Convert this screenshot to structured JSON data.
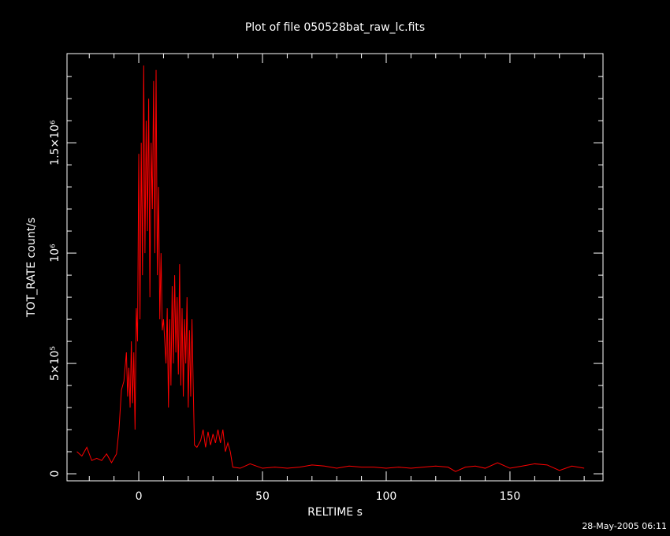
{
  "chart_data": {
    "type": "line",
    "title": "Plot of file 050528bat_raw_lc.fits",
    "x_label": "RELTIME  s",
    "y_label": "TOT_RATE  count/s",
    "timestamp": "28-May-2005 06:11",
    "color": "#ff0000",
    "xlim": [
      -29,
      187.6
    ],
    "ylim": [
      -32000,
      1904000
    ],
    "xticks": [
      0,
      50,
      100,
      150
    ],
    "yticks": [
      0,
      {
        "value": 500000,
        "label": "5×10⁵"
      },
      {
        "value": 1000000,
        "label": "10⁶"
      },
      {
        "value": 1500000,
        "label": "1.5×10⁶"
      }
    ],
    "xminorticks": [
      -20,
      -10,
      10,
      20,
      30,
      40,
      60,
      70,
      80,
      90,
      110,
      120,
      130,
      140,
      160,
      170,
      180
    ],
    "yminorticks": [
      100000,
      200000,
      300000,
      400000,
      600000,
      700000,
      800000,
      900000,
      1100000,
      1200000,
      1300000,
      1400000,
      1600000,
      1700000,
      1800000
    ],
    "x": [
      -25,
      -23,
      -21,
      -19,
      -17,
      -15,
      -13,
      -11,
      -9,
      -8,
      -7,
      -6,
      -5,
      -4.5,
      -4,
      -3.5,
      -3,
      -2.5,
      -2,
      -1.5,
      -1,
      -0.5,
      0,
      0.5,
      1,
      1.5,
      2,
      2.5,
      3,
      3.5,
      4,
      4.5,
      5,
      5.5,
      6,
      6.5,
      7,
      7.5,
      8,
      8.5,
      9,
      9.5,
      10,
      11,
      11.5,
      12,
      12.5,
      13,
      13.5,
      14,
      14.5,
      15,
      15.5,
      16,
      16.5,
      17,
      17.5,
      18,
      18.5,
      19,
      19.5,
      20,
      20.5,
      21,
      21.5,
      22,
      22.5,
      23.5,
      25,
      26,
      27,
      28,
      29,
      30,
      31,
      32,
      33,
      34,
      35,
      36,
      37,
      38,
      41,
      45,
      50,
      55,
      60,
      65,
      70,
      75,
      80,
      85,
      90,
      95,
      100,
      105,
      110,
      115,
      120,
      125,
      128,
      132,
      136,
      140,
      145,
      150,
      155,
      160,
      165,
      170,
      175,
      180
    ],
    "values": [
      100000,
      80000,
      120000,
      60000,
      70000,
      60000,
      90000,
      50000,
      90000,
      200000,
      380000,
      420000,
      550000,
      350000,
      480000,
      300000,
      600000,
      320000,
      550000,
      200000,
      750000,
      600000,
      1450000,
      700000,
      1500000,
      900000,
      1850000,
      1000000,
      1600000,
      1100000,
      1700000,
      800000,
      1500000,
      1200000,
      1780000,
      1000000,
      1830000,
      900000,
      1300000,
      700000,
      1000000,
      650000,
      700000,
      500000,
      750000,
      300000,
      700000,
      400000,
      850000,
      500000,
      900000,
      550000,
      800000,
      450000,
      950000,
      400000,
      750000,
      350000,
      700000,
      500000,
      800000,
      300000,
      650000,
      350000,
      700000,
      400000,
      130000,
      120000,
      150000,
      200000,
      120000,
      190000,
      130000,
      180000,
      140000,
      200000,
      140000,
      200000,
      100000,
      140000,
      100000,
      30000,
      25000,
      45000,
      25000,
      30000,
      25000,
      30000,
      40000,
      35000,
      25000,
      35000,
      30000,
      30000,
      25000,
      30000,
      25000,
      30000,
      35000,
      30000,
      10000,
      30000,
      35000,
      25000,
      50000,
      25000,
      35000,
      45000,
      40000,
      15000,
      35000,
      25000
    ]
  }
}
